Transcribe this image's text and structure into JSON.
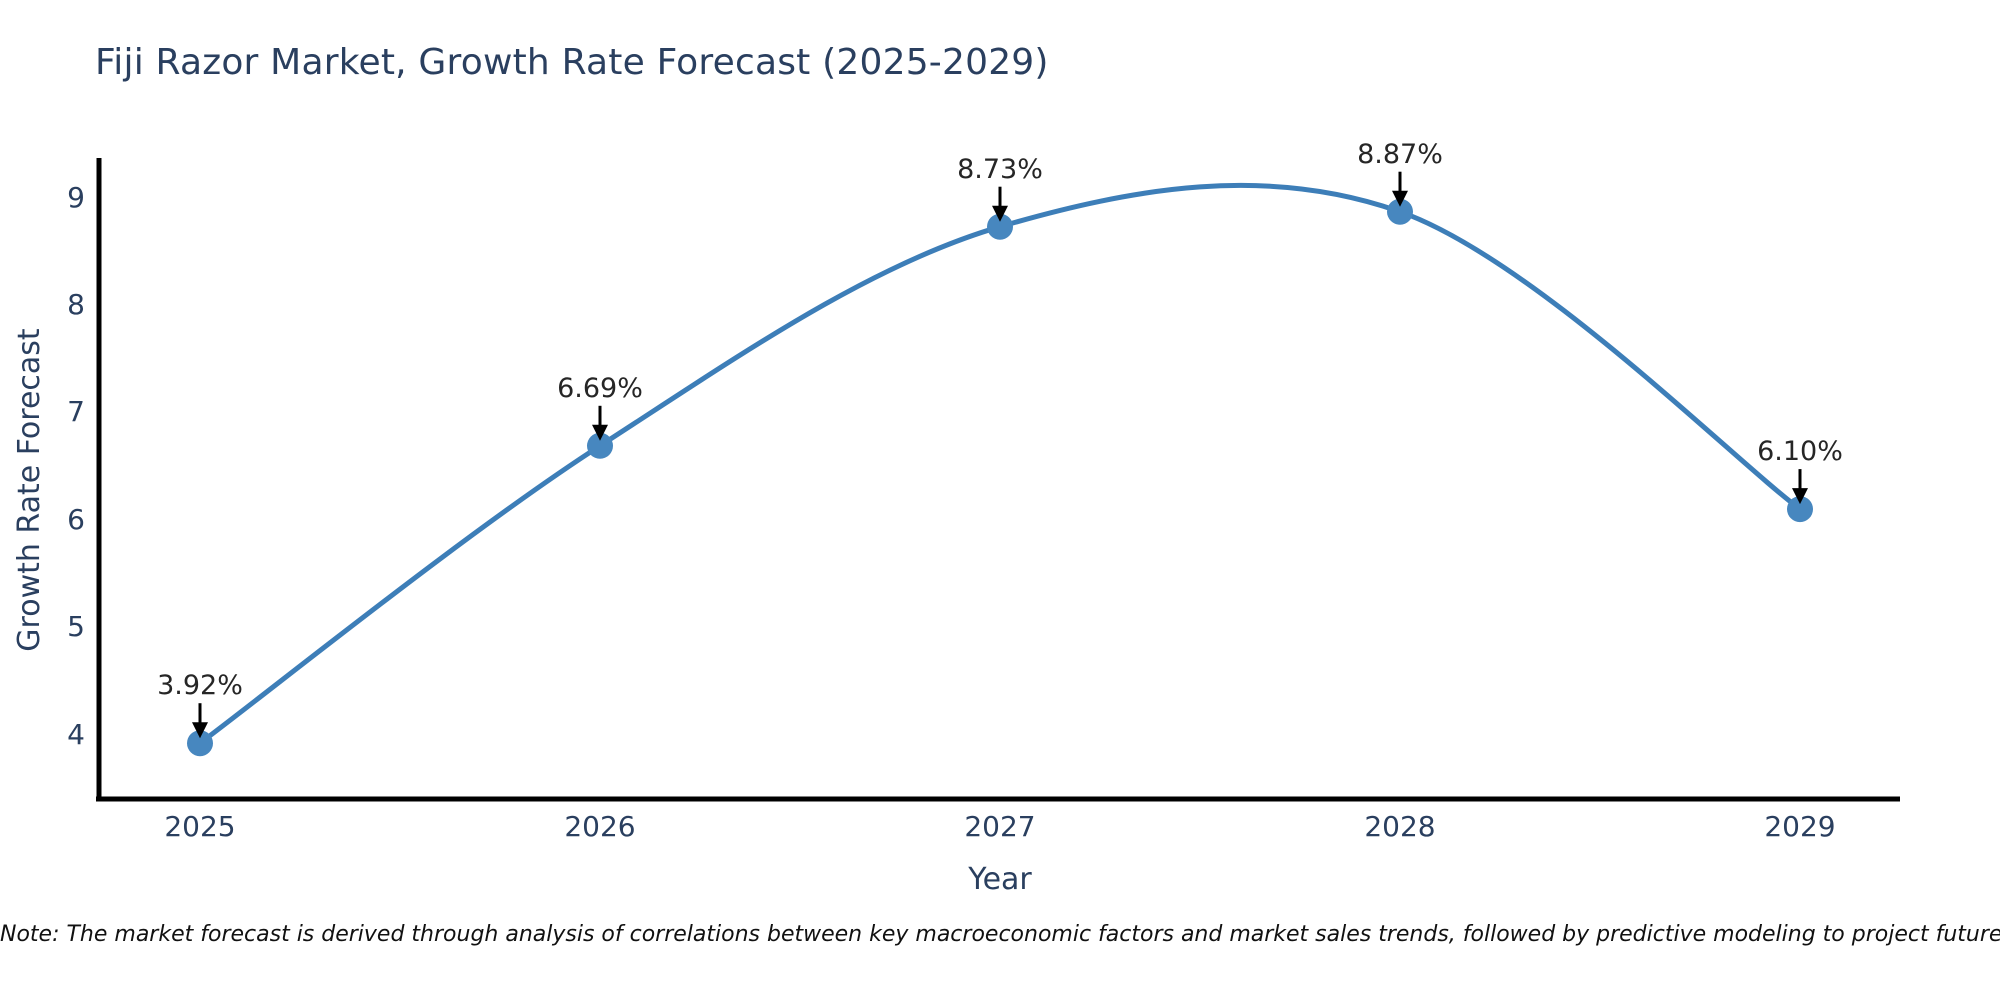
{
  "title": "Fiji Razor Market, Growth Rate Forecast (2025-2029)",
  "note": "Note: The market forecast is derived through analysis of correlations between key macroeconomic factors and market sales trends, followed by predictive modeling to project future sales.",
  "colors": {
    "line": "#3d7eb8",
    "marker": "#4787bf",
    "spine": "#000000",
    "arrow": "#000000",
    "title_text": "#2a3f5f",
    "axis_text": "#2a3f5f",
    "annotation_text": "#262626",
    "background": "#ffffff"
  },
  "chart_data": {
    "type": "line",
    "title": "Fiji Razor Market, Growth Rate Forecast (2025-2029)",
    "categories": [
      "2025",
      "2026",
      "2027",
      "2028",
      "2029"
    ],
    "values": [
      3.92,
      6.69,
      8.73,
      8.87,
      6.1
    ],
    "point_labels": [
      "3.92%",
      "6.69%",
      "8.73%",
      "8.87%",
      "6.10%"
    ],
    "xlabel": "Year",
    "ylabel": "Growth Rate Forecast",
    "yticks": [
      4,
      5,
      6,
      7,
      8,
      9
    ],
    "ylim": [
      3.4,
      9.37
    ],
    "grid": false,
    "legend": "none",
    "line_style": "smooth-spline",
    "marker": "circle",
    "annotation_style": "value-above-with-down-arrow"
  }
}
